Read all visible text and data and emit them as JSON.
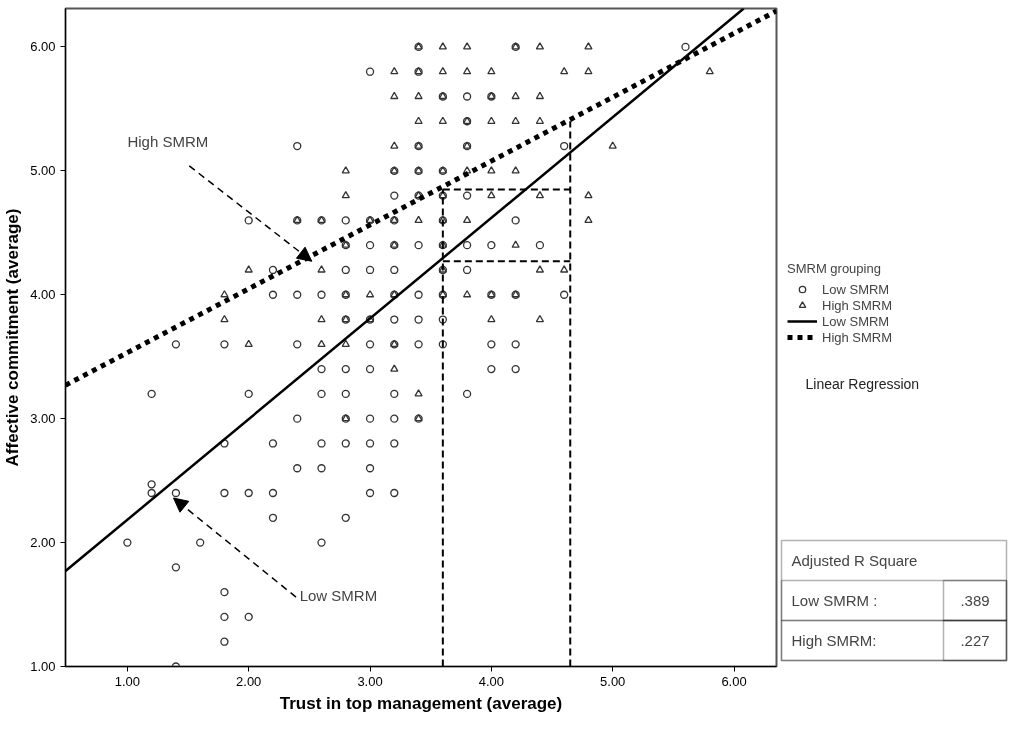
{
  "chart_data": {
    "type": "scatter",
    "xlabel": "Trust in top management (average)",
    "ylabel": "Affective commitment (average)",
    "legend_title": "SMRM grouping",
    "legend": "right",
    "grid": false,
    "xlim": [
      0.49,
      6.35
    ],
    "ylim": [
      1.0,
      6.31
    ],
    "xticks": [
      {
        "value": 1,
        "label": "1.00"
      },
      {
        "value": 2,
        "label": "2.00"
      },
      {
        "value": 3,
        "label": "3.00"
      },
      {
        "value": 4,
        "label": "4.00"
      },
      {
        "value": 5,
        "label": "5.00"
      },
      {
        "value": 6,
        "label": "6.00"
      }
    ],
    "yticks": [
      {
        "value": 1,
        "label": "1.00"
      },
      {
        "value": 2,
        "label": "2.00"
      },
      {
        "value": 3,
        "label": "3.00"
      },
      {
        "value": 4,
        "label": "4.00"
      },
      {
        "value": 5,
        "label": "5.00"
      },
      {
        "value": 6,
        "label": "6.00"
      }
    ],
    "series": [
      {
        "name": "Low SMRM",
        "type": "scatter",
        "marker": "circle",
        "color": "#333333",
        "x": [
          3.4,
          4.2,
          5.6,
          3.0,
          3.4,
          3.6,
          3.8,
          4.0,
          3.8,
          2.4,
          3.4,
          3.8,
          4.6,
          3.2,
          3.4,
          3.6,
          3.2,
          3.4,
          3.6,
          3.8,
          2.0,
          2.4,
          2.6,
          2.8,
          3.0,
          3.2,
          3.6,
          4.2,
          2.8,
          3.0,
          3.2,
          3.4,
          3.6,
          3.8,
          4.0,
          4.4,
          2.2,
          2.8,
          3.0,
          3.2,
          3.6,
          3.8,
          2.2,
          2.4,
          2.6,
          2.8,
          3.2,
          3.4,
          3.6,
          4.0,
          4.2,
          4.6,
          2.8,
          3.0,
          3.2,
          3.4,
          3.6,
          1.4,
          1.8,
          2.4,
          3.0,
          3.2,
          3.4,
          3.6,
          4.0,
          4.2,
          2.6,
          2.8,
          3.0,
          4.0,
          4.2,
          1.2,
          2.0,
          2.6,
          2.8,
          3.2,
          3.8,
          2.4,
          2.8,
          3.0,
          3.2,
          3.4,
          1.8,
          2.2,
          2.6,
          2.8,
          3.0,
          3.2,
          2.4,
          2.6,
          3.0,
          1.2,
          1.2,
          1.4,
          1.8,
          2.0,
          2.2,
          3.0,
          3.2,
          2.2,
          2.8,
          1.0,
          1.6,
          2.6,
          1.4,
          1.8,
          1.8,
          2.0,
          1.8,
          1.4
        ],
        "values": [
          6.0,
          6.0,
          6.0,
          5.8,
          5.8,
          5.6,
          5.6,
          5.6,
          5.4,
          5.2,
          5.2,
          5.2,
          5.2,
          5.0,
          5.0,
          5.0,
          4.8,
          4.8,
          4.8,
          4.8,
          4.6,
          4.6,
          4.6,
          4.6,
          4.6,
          4.6,
          4.6,
          4.6,
          4.4,
          4.4,
          4.4,
          4.4,
          4.4,
          4.4,
          4.4,
          4.4,
          4.2,
          4.2,
          4.2,
          4.2,
          4.2,
          4.2,
          4.0,
          4.0,
          4.0,
          4.0,
          4.0,
          4.0,
          4.0,
          4.0,
          4.0,
          4.0,
          3.8,
          3.8,
          3.8,
          3.8,
          3.8,
          3.6,
          3.6,
          3.6,
          3.6,
          3.6,
          3.6,
          3.6,
          3.6,
          3.6,
          3.4,
          3.4,
          3.4,
          3.4,
          3.4,
          3.2,
          3.2,
          3.2,
          3.2,
          3.2,
          3.2,
          3.0,
          3.0,
          3.0,
          3.0,
          3.0,
          2.8,
          2.8,
          2.8,
          2.8,
          2.8,
          2.8,
          2.6,
          2.6,
          2.6,
          2.47,
          2.4,
          2.4,
          2.4,
          2.4,
          2.4,
          2.4,
          2.4,
          2.2,
          2.2,
          2.0,
          2.0,
          2.0,
          1.8,
          1.6,
          1.4,
          1.4,
          1.2,
          1.0
        ]
      },
      {
        "name": "High SMRM",
        "type": "scatter",
        "marker": "triangle",
        "color": "#333333",
        "x": [
          3.4,
          3.6,
          3.8,
          4.2,
          4.4,
          4.8,
          3.2,
          3.4,
          3.6,
          3.8,
          4.0,
          4.6,
          4.8,
          5.8,
          3.2,
          3.4,
          3.6,
          4.0,
          4.2,
          4.4,
          3.4,
          3.6,
          3.8,
          4.0,
          4.2,
          4.4,
          3.2,
          3.4,
          3.8,
          5.0,
          2.8,
          3.2,
          3.4,
          3.6,
          3.8,
          4.0,
          4.2,
          2.8,
          3.4,
          3.6,
          4.0,
          4.4,
          4.8,
          2.4,
          2.6,
          3.0,
          3.2,
          3.4,
          3.6,
          3.8,
          4.8,
          2.8,
          3.2,
          3.6,
          4.2,
          2.0,
          2.6,
          3.6,
          4.4,
          4.6,
          1.8,
          2.8,
          3.0,
          3.2,
          3.6,
          3.8,
          4.0,
          4.2,
          1.8,
          2.6,
          2.8,
          3.0,
          4.0,
          4.4,
          2.0,
          2.6,
          2.8,
          3.2,
          3.2,
          3.4,
          2.8,
          3.4
        ],
        "values": [
          6.0,
          6.0,
          6.0,
          6.0,
          6.0,
          6.0,
          5.8,
          5.8,
          5.8,
          5.8,
          5.8,
          5.8,
          5.8,
          5.8,
          5.6,
          5.6,
          5.6,
          5.6,
          5.6,
          5.6,
          5.4,
          5.4,
          5.4,
          5.4,
          5.4,
          5.4,
          5.2,
          5.2,
          5.2,
          5.2,
          5.0,
          5.0,
          5.0,
          5.0,
          5.0,
          5.0,
          5.0,
          4.8,
          4.8,
          4.8,
          4.8,
          4.8,
          4.8,
          4.6,
          4.6,
          4.6,
          4.6,
          4.6,
          4.6,
          4.6,
          4.6,
          4.4,
          4.4,
          4.4,
          4.4,
          4.2,
          4.2,
          4.2,
          4.2,
          4.2,
          4.0,
          4.0,
          4.0,
          4.0,
          4.0,
          4.0,
          4.0,
          4.0,
          3.8,
          3.8,
          3.8,
          3.8,
          3.8,
          3.8,
          3.6,
          3.6,
          3.6,
          3.6,
          3.4,
          3.2,
          3.0,
          3.0
        ]
      },
      {
        "name": "Low SMRM",
        "type": "line",
        "line_style": "solid",
        "color": "#000000",
        "x": [
          0.49,
          6.08
        ],
        "values": [
          1.77,
          6.31
        ]
      },
      {
        "name": "High SMRM",
        "type": "line",
        "line_style": "dotted",
        "color": "#000000",
        "x": [
          0.49,
          6.35
        ],
        "values": [
          3.27,
          6.29
        ]
      },
      {
        "type": "line",
        "line_style": "dashed",
        "color": "#000000",
        "x": [
          3.6,
          3.6
        ],
        "values": [
          1.0,
          4.85
        ]
      },
      {
        "type": "line",
        "line_style": "dashed",
        "color": "#000000",
        "x": [
          4.65,
          4.65
        ],
        "values": [
          1.0,
          5.4
        ]
      },
      {
        "type": "line",
        "line_style": "dashed",
        "color": "#000000",
        "x": [
          3.6,
          4.65
        ],
        "values": [
          4.85,
          4.85
        ]
      },
      {
        "type": "line",
        "line_style": "dashed",
        "color": "#000000",
        "x": [
          3.6,
          4.65
        ],
        "values": [
          4.27,
          4.27
        ]
      }
    ],
    "annotations": [
      {
        "text": "High SMRM",
        "x": 2.52,
        "y": 4.27
      },
      {
        "text": "Low SMRM",
        "x": 1.38,
        "y": 2.36
      },
      "Linear Regression",
      "Adjusted R Square",
      "Low SMRM :",
      ".389",
      "High SMRM:",
      ".227"
    ]
  }
}
